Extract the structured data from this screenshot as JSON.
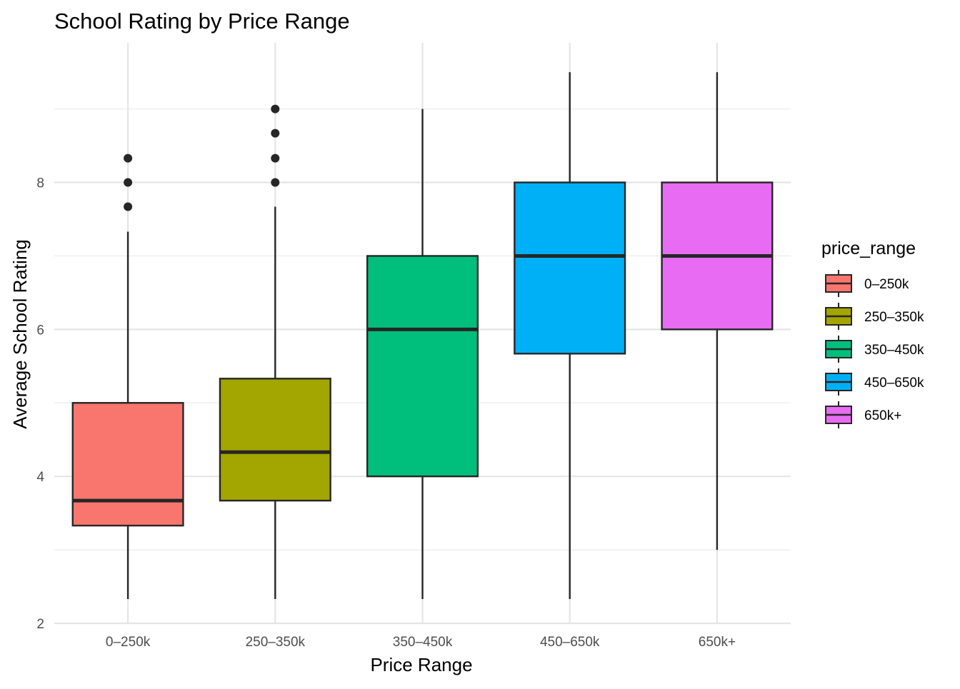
{
  "chart_data": {
    "type": "box",
    "title": "School Rating by Price Range",
    "xlabel": "Price Range",
    "ylabel": "Average School Rating",
    "ylim": [
      2,
      9.75
    ],
    "yticks": [
      2,
      4,
      6,
      8
    ],
    "grid": true,
    "legend": {
      "title": "price_range",
      "position": "right"
    },
    "categories": [
      "0–250k",
      "250–350k",
      "350–450k",
      "450–650k",
      "650k+"
    ],
    "series": [
      {
        "name": "0–250k",
        "color": "#F8766D",
        "min": 2.33,
        "q1": 3.33,
        "median": 3.67,
        "q3": 5.0,
        "max": 7.33,
        "outliers": [
          7.67,
          8.0,
          8.33
        ]
      },
      {
        "name": "250–350k",
        "color": "#A3A500",
        "min": 2.33,
        "q1": 3.67,
        "median": 4.33,
        "q3": 5.33,
        "max": 7.67,
        "outliers": [
          8.0,
          8.33,
          8.67,
          9.0
        ]
      },
      {
        "name": "350–450k",
        "color": "#00BF7D",
        "min": 2.33,
        "q1": 4.0,
        "median": 6.0,
        "q3": 7.0,
        "max": 9.0,
        "outliers": []
      },
      {
        "name": "450–650k",
        "color": "#00B0F6",
        "min": 2.33,
        "q1": 5.67,
        "median": 7.0,
        "q3": 8.0,
        "max": 9.5,
        "outliers": []
      },
      {
        "name": "650k+",
        "color": "#E76BF3",
        "min": 3.0,
        "q1": 6.0,
        "median": 7.0,
        "q3": 8.0,
        "max": 9.5,
        "outliers": []
      }
    ]
  }
}
